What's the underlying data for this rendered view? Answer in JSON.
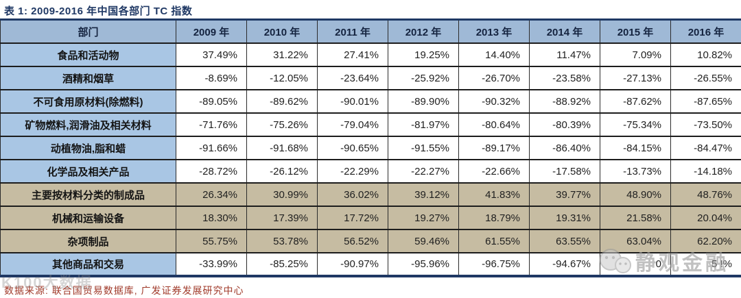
{
  "title": "表 1:  2009-2016 年中国各部门 TC 指数",
  "table": {
    "headers": [
      "部门",
      "2009 年",
      "2010 年",
      "2011 年",
      "2012 年",
      "2013 年",
      "2014 年",
      "2015 年",
      "2016 年"
    ],
    "rows": [
      {
        "label": "食品和活动物",
        "values": [
          "37.49%",
          "31.22%",
          "27.41%",
          "19.25%",
          "14.40%",
          "11.47%",
          "7.09%",
          "10.82%"
        ],
        "highlight": false
      },
      {
        "label": "酒精和烟草",
        "values": [
          "-8.69%",
          "-12.05%",
          "-23.64%",
          "-25.92%",
          "-26.70%",
          "-23.58%",
          "-27.13%",
          "-26.55%"
        ],
        "highlight": false
      },
      {
        "label": "不可食用原材料(除燃料)",
        "values": [
          "-89.05%",
          "-89.62%",
          "-90.01%",
          "-89.90%",
          "-90.32%",
          "-88.92%",
          "-87.62%",
          "-87.65%"
        ],
        "highlight": false
      },
      {
        "label": "矿物燃料,润滑油及相关材料",
        "values": [
          "-71.76%",
          "-75.26%",
          "-79.04%",
          "-81.97%",
          "-80.64%",
          "-80.39%",
          "-75.34%",
          "-73.50%"
        ],
        "highlight": false
      },
      {
        "label": "动植物油,脂和蜡",
        "values": [
          "-91.66%",
          "-91.68%",
          "-90.65%",
          "-91.55%",
          "-89.17%",
          "-86.40%",
          "-84.15%",
          "-84.47%"
        ],
        "highlight": false
      },
      {
        "label": "化学品及相关产品",
        "values": [
          "-28.72%",
          "-26.12%",
          "-22.29%",
          "-22.27%",
          "-22.66%",
          "-17.58%",
          "-13.73%",
          "-14.18%"
        ],
        "highlight": false
      },
      {
        "label": "主要按材料分类的制成品",
        "values": [
          "26.34%",
          "30.99%",
          "36.02%",
          "39.12%",
          "41.83%",
          "39.77%",
          "48.90%",
          "48.76%"
        ],
        "highlight": true
      },
      {
        "label": "机械和运输设备",
        "values": [
          "18.30%",
          "17.39%",
          "17.72%",
          "19.27%",
          "18.79%",
          "19.31%",
          "21.58%",
          "20.04%"
        ],
        "highlight": true
      },
      {
        "label": "杂项制品",
        "values": [
          "55.75%",
          "53.78%",
          "56.52%",
          "59.46%",
          "61.55%",
          "63.55%",
          "63.04%",
          "62.20%"
        ],
        "highlight": true
      },
      {
        "label": "其他商品和交易",
        "values": [
          "-33.99%",
          "-85.25%",
          "-90.97%",
          "-95.96%",
          "-96.75%",
          "-94.67%",
          "0",
          "5 !%"
        ],
        "highlight": false
      }
    ]
  },
  "source": "数据来源: 联合国贸易数据库, 广发证券发展研究中心",
  "watermark_right": "静观金融",
  "watermark_left": "K100大数据",
  "colors": {
    "title_navy": "#1F3864",
    "header_blue": "#9FB9D6",
    "label_blue": "#A9C6E4",
    "highlight_tan": "#C6BCA2",
    "source_red": "#A03A2A",
    "watermark_gray": "#9a9a9a"
  }
}
